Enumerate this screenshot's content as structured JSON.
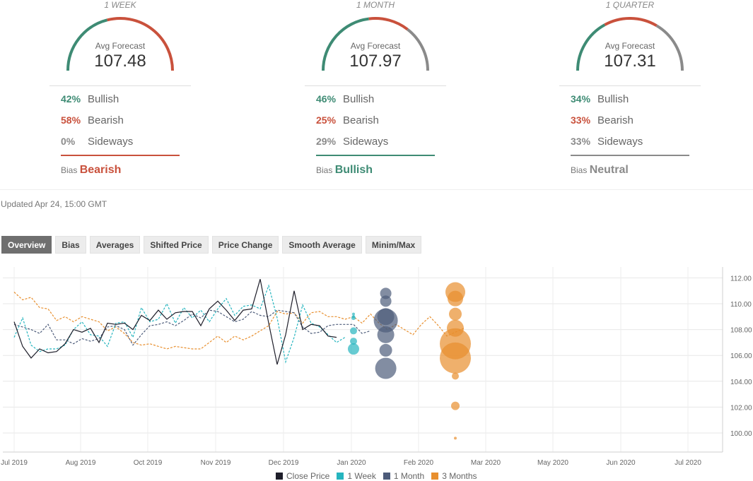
{
  "panels": [
    {
      "period": "1 WEEK",
      "caption": "Avg Forecast",
      "value": "107.48",
      "stats": [
        {
          "pct": "42%",
          "label": "Bullish"
        },
        {
          "pct": "58%",
          "label": "Bearish"
        },
        {
          "pct": "0%",
          "label": "Sideways"
        }
      ],
      "bias_label": "Bias",
      "bias": "Bearish",
      "gauge_fraction": {
        "bullish": 0.42,
        "bearish": 0.58,
        "sideways": 0.0
      }
    },
    {
      "period": "1 MONTH",
      "caption": "Avg Forecast",
      "value": "107.97",
      "stats": [
        {
          "pct": "46%",
          "label": "Bullish"
        },
        {
          "pct": "25%",
          "label": "Bearish"
        },
        {
          "pct": "29%",
          "label": "Sideways"
        }
      ],
      "bias_label": "Bias",
      "bias": "Bullish",
      "gauge_fraction": {
        "bullish": 0.46,
        "bearish": 0.25,
        "sideways": 0.29
      }
    },
    {
      "period": "1 QUARTER",
      "caption": "Avg Forecast",
      "value": "107.31",
      "stats": [
        {
          "pct": "34%",
          "label": "Bullish"
        },
        {
          "pct": "33%",
          "label": "Bearish"
        },
        {
          "pct": "33%",
          "label": "Sideways"
        }
      ],
      "bias_label": "Bias",
      "bias": "Neutral",
      "gauge_fraction": {
        "bullish": 0.34,
        "bearish": 0.33,
        "sideways": 0.33
      }
    }
  ],
  "updated": "Updated Apr 24, 15:00 GMT",
  "tabs": [
    "Overview",
    "Bias",
    "Averages",
    "Shifted Price",
    "Price Change",
    "Smooth Average",
    "Minim/Max"
  ],
  "colors": {
    "bullish": "#3e8b74",
    "bearish": "#c9513c",
    "sideways": "#8a8a8a",
    "close": "#1e1e2a",
    "week": "#26b5bf",
    "month": "#4d5c7a",
    "quarter": "#e88f2e"
  },
  "chart_data": {
    "type": "line",
    "x_ticks": [
      "Jul 2019",
      "Aug 2019",
      "Oct 2019",
      "Nov 2019",
      "Dec 2019",
      "Jan 2020",
      "Feb 2020",
      "Mar 2020",
      "May 2020",
      "Jun 2020",
      "Jul 2020"
    ],
    "y_ticks": [
      "112.00",
      "110.00",
      "108.00",
      "106.00",
      "104.00",
      "102.00",
      "100.00"
    ],
    "ylim": [
      99,
      112.5
    ],
    "legend": [
      "Close Price",
      "1 Week",
      "1 Month",
      "3 Months"
    ],
    "series": [
      {
        "name": "Close Price",
        "points": [
          [
            0,
            108.6
          ],
          [
            0.5,
            106.7
          ],
          [
            1,
            105.8
          ],
          [
            1.5,
            106.5
          ],
          [
            2,
            106.2
          ],
          [
            2.5,
            106.3
          ],
          [
            3,
            106.9
          ],
          [
            3.5,
            108.0
          ],
          [
            4,
            107.8
          ],
          [
            4.5,
            108.1
          ],
          [
            5,
            107.0
          ],
          [
            5.5,
            108.5
          ],
          [
            6,
            108.4
          ],
          [
            6.5,
            108.5
          ],
          [
            7,
            108.0
          ],
          [
            7.5,
            109.1
          ],
          [
            8,
            108.7
          ],
          [
            8.5,
            109.5
          ],
          [
            9,
            108.8
          ],
          [
            9.5,
            109.3
          ],
          [
            10,
            109.4
          ],
          [
            10.5,
            109.4
          ],
          [
            11,
            108.3
          ],
          [
            11.5,
            109.6
          ],
          [
            12,
            110.2
          ],
          [
            12.5,
            109.5
          ],
          [
            13,
            108.7
          ],
          [
            13.5,
            109.5
          ],
          [
            14,
            109.6
          ],
          [
            14.5,
            111.9
          ],
          [
            15,
            108.5
          ],
          [
            15.5,
            105.3
          ],
          [
            16,
            107.6
          ],
          [
            16.5,
            111.0
          ],
          [
            17,
            108.0
          ],
          [
            17.5,
            108.4
          ],
          [
            18,
            108.3
          ],
          [
            18.5,
            107.5
          ],
          [
            19,
            107.4
          ]
        ]
      },
      {
        "name": "1 Week",
        "points": [
          [
            0,
            107.4
          ],
          [
            0.5,
            108.9
          ],
          [
            1,
            106.8
          ],
          [
            1.5,
            106.3
          ],
          [
            2,
            106.5
          ],
          [
            2.5,
            106.5
          ],
          [
            3,
            106.8
          ],
          [
            3.5,
            108.0
          ],
          [
            4,
            108.6
          ],
          [
            4.5,
            107.6
          ],
          [
            5,
            107.5
          ],
          [
            5.5,
            106.7
          ],
          [
            6,
            108.5
          ],
          [
            6.5,
            108.6
          ],
          [
            7,
            107.4
          ],
          [
            7.5,
            109.7
          ],
          [
            8,
            108.6
          ],
          [
            8.5,
            108.8
          ],
          [
            9,
            110.0
          ],
          [
            9.5,
            108.5
          ],
          [
            10,
            109.7
          ],
          [
            10.5,
            108.9
          ],
          [
            11,
            109.5
          ],
          [
            11.5,
            108.6
          ],
          [
            12,
            109.6
          ],
          [
            12.5,
            110.4
          ],
          [
            13,
            109.1
          ],
          [
            13.5,
            109.8
          ],
          [
            14,
            109.9
          ],
          [
            14.5,
            109.6
          ],
          [
            15,
            111.4
          ],
          [
            15.5,
            108.9
          ],
          [
            16,
            105.5
          ],
          [
            16.5,
            107.4
          ],
          [
            17,
            109.9
          ],
          [
            17.5,
            108.5
          ],
          [
            18,
            108.2
          ],
          [
            18.5,
            107.6
          ],
          [
            19,
            107.0
          ],
          [
            19.5,
            107.4
          ]
        ]
      },
      {
        "name": "1 Month",
        "points": [
          [
            0,
            108.4
          ],
          [
            1,
            108.0
          ],
          [
            1.5,
            107.7
          ],
          [
            2,
            108.4
          ],
          [
            2.5,
            107.2
          ],
          [
            3,
            107.2
          ],
          [
            3.5,
            106.9
          ],
          [
            4,
            107.3
          ],
          [
            4.5,
            107.1
          ],
          [
            5,
            107.3
          ],
          [
            5.5,
            108.2
          ],
          [
            6,
            108.3
          ],
          [
            6.5,
            108.0
          ],
          [
            7,
            106.8
          ],
          [
            7.5,
            107.6
          ],
          [
            8,
            108.3
          ],
          [
            8.5,
            108.4
          ],
          [
            9,
            108.6
          ],
          [
            9.5,
            108.3
          ],
          [
            10,
            108.7
          ],
          [
            10.5,
            109.2
          ],
          [
            11,
            108.9
          ],
          [
            11.5,
            109.5
          ],
          [
            12,
            109.4
          ],
          [
            12.5,
            109.0
          ],
          [
            13,
            108.6
          ],
          [
            13.5,
            108.8
          ],
          [
            14,
            109.4
          ],
          [
            14.5,
            109.1
          ],
          [
            15,
            109.0
          ],
          [
            15.5,
            109.5
          ],
          [
            16,
            109.4
          ],
          [
            16.5,
            109.3
          ],
          [
            17,
            108.2
          ],
          [
            17.5,
            107.7
          ],
          [
            18,
            107.8
          ],
          [
            18.5,
            108.3
          ],
          [
            19,
            108.4
          ],
          [
            19.5,
            108.4
          ],
          [
            20,
            108.4
          ],
          [
            20.5,
            107.7
          ],
          [
            21,
            107.9
          ]
        ]
      },
      {
        "name": "3 Months",
        "points": [
          [
            0,
            110.9
          ],
          [
            0.5,
            110.3
          ],
          [
            1,
            110.5
          ],
          [
            1.5,
            109.7
          ],
          [
            2,
            109.6
          ],
          [
            2.5,
            108.7
          ],
          [
            3,
            109.0
          ],
          [
            3.5,
            108.6
          ],
          [
            4,
            109.0
          ],
          [
            4.5,
            108.8
          ],
          [
            5,
            108.6
          ],
          [
            5.5,
            107.9
          ],
          [
            6,
            108.2
          ],
          [
            6.5,
            107.7
          ],
          [
            7,
            107.0
          ],
          [
            7.5,
            106.8
          ],
          [
            8,
            106.9
          ],
          [
            8.5,
            106.7
          ],
          [
            9,
            106.5
          ],
          [
            9.5,
            106.7
          ],
          [
            10,
            106.6
          ],
          [
            10.5,
            106.5
          ],
          [
            11,
            106.5
          ],
          [
            11.5,
            107.0
          ],
          [
            12,
            107.5
          ],
          [
            12.5,
            107.0
          ],
          [
            13,
            107.5
          ],
          [
            13.5,
            107.2
          ],
          [
            14,
            107.5
          ],
          [
            14.5,
            107.9
          ],
          [
            15,
            108.3
          ],
          [
            15.5,
            109.4
          ],
          [
            16,
            109.2
          ],
          [
            16.5,
            109.3
          ],
          [
            17,
            108.5
          ],
          [
            17.5,
            109.3
          ],
          [
            18,
            109.4
          ],
          [
            18.5,
            109.0
          ],
          [
            19,
            109.0
          ],
          [
            19.5,
            108.8
          ],
          [
            20,
            109.0
          ],
          [
            20.5,
            108.5
          ],
          [
            21,
            109.2
          ],
          [
            21.5,
            108.5
          ],
          [
            22,
            108.0
          ],
          [
            22.5,
            108.4
          ],
          [
            23,
            108.0
          ],
          [
            23.5,
            107.6
          ],
          [
            24,
            108.4
          ],
          [
            24.5,
            109.0
          ],
          [
            25,
            108.3
          ],
          [
            25.5,
            107.5
          ],
          [
            26,
            107.8
          ],
          [
            26.5,
            108.1
          ]
        ]
      }
    ],
    "forecast_dots": [
      {
        "series": "1 Week",
        "x": 20,
        "dots": [
          [
            109.2,
            2
          ],
          [
            109.0,
            2
          ],
          [
            108.9,
            3
          ],
          [
            107.9,
            5
          ],
          [
            107.1,
            5
          ],
          [
            106.5,
            8
          ]
        ]
      },
      {
        "series": "1 Month",
        "x": 21.9,
        "dots": [
          [
            110.8,
            8
          ],
          [
            110.2,
            8
          ],
          [
            109.0,
            12
          ],
          [
            108.7,
            17
          ],
          [
            107.6,
            12
          ],
          [
            106.4,
            9
          ],
          [
            105.0,
            15
          ]
        ]
      },
      {
        "series": "3 Months",
        "x": 26,
        "dots": [
          [
            110.9,
            14
          ],
          [
            110.4,
            11
          ],
          [
            109.2,
            9
          ],
          [
            108.1,
            12
          ],
          [
            106.9,
            22
          ],
          [
            105.8,
            22
          ],
          [
            104.4,
            5
          ],
          [
            102.1,
            6
          ],
          [
            99.6,
            2
          ]
        ]
      }
    ]
  }
}
